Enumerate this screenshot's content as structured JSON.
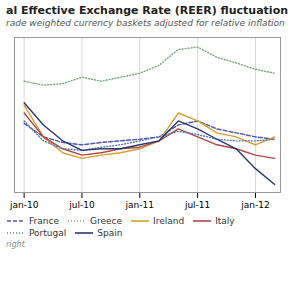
{
  "chart_data": {
    "type": "line",
    "title": "al Effective Exchange Rate (REER) fluctuation",
    "subtitle": "rade weighted currency baskets adjusted for relative inflation",
    "caption": "right",
    "x": [
      0,
      1,
      2,
      3,
      4,
      5,
      6,
      7,
      8,
      9,
      10,
      11,
      12,
      13
    ],
    "xlim": [
      -0.5,
      13.3
    ],
    "xticks": [
      {
        "value": 0,
        "label": "jan-10"
      },
      {
        "value": 3,
        "label": "jul-10"
      },
      {
        "value": 6,
        "label": "jan-11"
      },
      {
        "value": 9,
        "label": "jul-11"
      },
      {
        "value": 12,
        "label": "jan-12"
      }
    ],
    "ylim": [
      94.5,
      114.0
    ],
    "tick_labels": "x",
    "grid": "x",
    "legend": "bottom",
    "series": [
      {
        "name": "France",
        "color": "#5555aa",
        "line_style": "dashed",
        "values": [
          103.2,
          101.5,
          100.8,
          100.5,
          100.8,
          101.0,
          101.2,
          101.5,
          103.0,
          103.5,
          102.5,
          102.0,
          101.5,
          101.2
        ]
      },
      {
        "name": "Greece",
        "color": "#78a878",
        "line_style": "dotted",
        "values": [
          108.5,
          108.0,
          108.2,
          109.0,
          108.5,
          109.0,
          109.5,
          110.5,
          112.5,
          112.8,
          111.5,
          110.8,
          110.0,
          109.5
        ]
      },
      {
        "name": "Ireland",
        "color": "#d4a030",
        "line_style": "solid",
        "values": [
          105.5,
          101.5,
          99.5,
          98.8,
          99.2,
          99.5,
          100.0,
          101.0,
          104.5,
          103.5,
          102.0,
          101.5,
          100.5,
          101.5
        ]
      },
      {
        "name": "Italy",
        "color": "#b04848",
        "line_style": "solid",
        "values": [
          104.5,
          101.5,
          100.0,
          99.2,
          99.5,
          100.0,
          100.2,
          101.0,
          102.5,
          101.5,
          100.5,
          100.0,
          99.2,
          98.8
        ]
      },
      {
        "name": "Portugal",
        "color": "#5878b0",
        "line_style": "dotted",
        "values": [
          103.5,
          101.0,
          100.0,
          99.8,
          100.2,
          100.5,
          101.0,
          101.5,
          102.2,
          101.8,
          101.2,
          101.0,
          101.0,
          101.2
        ]
      },
      {
        "name": "Spain",
        "color": "#2a3870",
        "line_style": "solid",
        "values": [
          105.8,
          103.0,
          101.0,
          99.8,
          100.0,
          100.0,
          100.5,
          101.0,
          103.5,
          102.5,
          101.2,
          100.0,
          97.5,
          95.5
        ]
      }
    ]
  }
}
